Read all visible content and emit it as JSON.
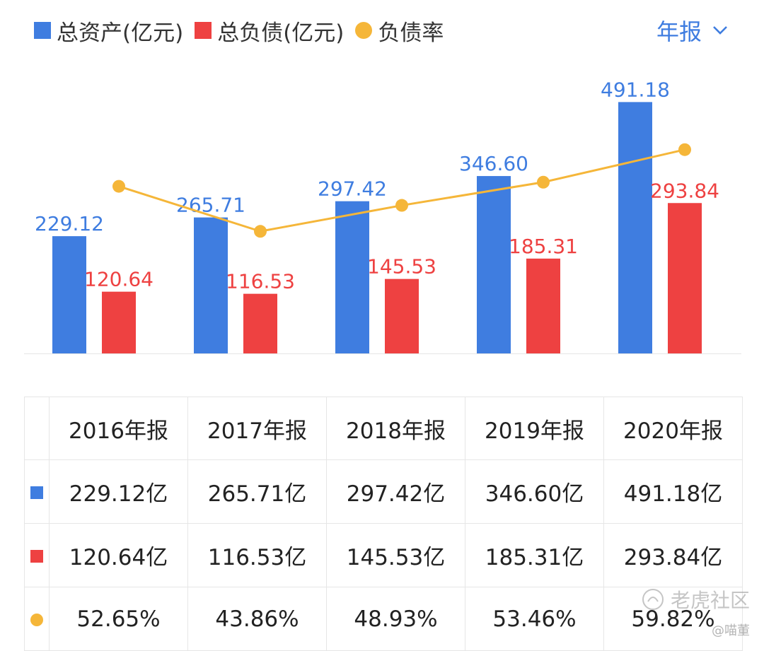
{
  "legend": {
    "assets": "总资产(亿元)",
    "liabilities": "总负债(亿元)",
    "ratio": "负债率"
  },
  "period_selector": "年报",
  "colors": {
    "assets": "#3f7de0",
    "liabilities": "#ee4141",
    "ratio": "#f5b639"
  },
  "chart_data": {
    "type": "bar",
    "categories": [
      "2016年报",
      "2017年报",
      "2018年报",
      "2019年报",
      "2020年报"
    ],
    "series": [
      {
        "name": "总资产(亿元)",
        "values": [
          229.12,
          265.71,
          297.42,
          346.6,
          491.18
        ],
        "labels": [
          "229.12",
          "265.71",
          "297.42",
          "346.60",
          "491.18"
        ]
      },
      {
        "name": "总负债(亿元)",
        "values": [
          120.64,
          116.53,
          145.53,
          185.31,
          293.84
        ],
        "labels": [
          "120.64",
          "116.53",
          "145.53",
          "185.31",
          "293.84"
        ]
      },
      {
        "name": "负债率",
        "type": "line",
        "values": [
          52.65,
          43.86,
          48.93,
          53.46,
          59.82
        ]
      }
    ],
    "ylim": [
      0,
      500
    ],
    "ratio_ylim": [
      20,
      70
    ]
  },
  "table": {
    "headers": [
      "2016年报",
      "2017年报",
      "2018年报",
      "2019年报",
      "2020年报"
    ],
    "rows": [
      [
        "229.12亿",
        "265.71亿",
        "297.42亿",
        "346.60亿",
        "491.18亿"
      ],
      [
        "120.64亿",
        "116.53亿",
        "145.53亿",
        "185.31亿",
        "293.84亿"
      ],
      [
        "52.65%",
        "43.86%",
        "48.93%",
        "53.46%",
        "59.82%"
      ]
    ]
  },
  "watermark": {
    "main": "老虎社区",
    "sub": "@喵董"
  }
}
